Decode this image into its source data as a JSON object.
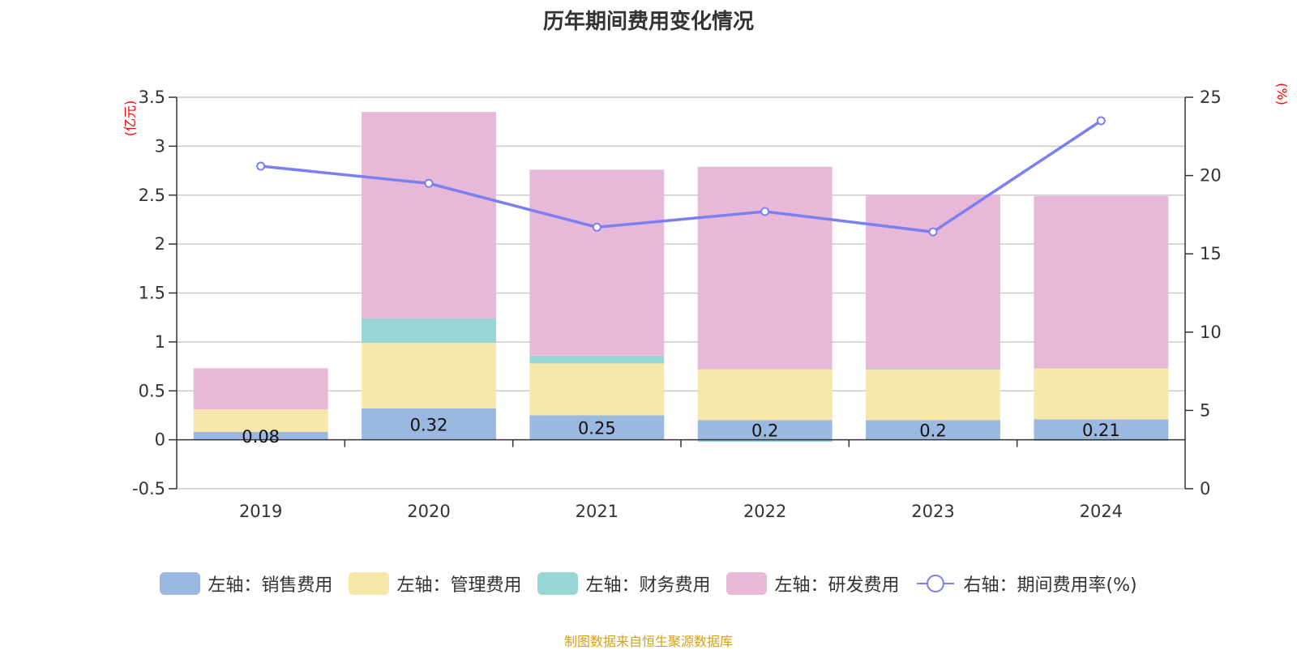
{
  "chart_data": {
    "type": "bar",
    "stacked": true,
    "title": "历年期间费用变化情况",
    "categories": [
      "2019",
      "2020",
      "2021",
      "2022",
      "2023",
      "2024"
    ],
    "left_axis_unit": "(亿元)",
    "right_axis_unit": "(%)",
    "ylim": [
      -0.5,
      3.5
    ],
    "yticks": [
      "3.5",
      "3",
      "2.5",
      "2",
      "1.5",
      "1",
      "0.5",
      "0",
      "-0.5"
    ],
    "y2lim": [
      0,
      25
    ],
    "y2ticks": [
      "25",
      "20",
      "15",
      "10",
      "5",
      "0"
    ],
    "grid": true,
    "legend_position": "bottom",
    "series": [
      {
        "name": "左轴：销售费用",
        "axis": "left",
        "kind": "bar",
        "color": "#9bb8e0",
        "values": [
          0.08,
          0.32,
          0.25,
          0.2,
          0.2,
          0.21
        ],
        "labels": [
          "0.08",
          "0.32",
          "0.25",
          "0.2",
          "0.2",
          "0.21"
        ]
      },
      {
        "name": "左轴：管理费用",
        "axis": "left",
        "kind": "bar",
        "color": "#f7e7a8",
        "values": [
          0.23,
          0.67,
          0.53,
          0.52,
          0.52,
          0.52
        ]
      },
      {
        "name": "左轴：财务费用",
        "axis": "left",
        "kind": "bar",
        "color": "#98d5d5",
        "values": [
          0.0,
          0.25,
          0.08,
          -0.02,
          0.01,
          -0.01
        ]
      },
      {
        "name": "左轴：研发费用",
        "axis": "left",
        "kind": "bar",
        "color": "#e7b8d8",
        "values": [
          0.42,
          2.11,
          1.9,
          2.07,
          1.77,
          1.76
        ]
      },
      {
        "name": "右轴：期间费用率(%)",
        "axis": "right",
        "kind": "line",
        "color": "#7b7ff0",
        "values": [
          20.6,
          19.5,
          16.7,
          17.7,
          16.4,
          23.5
        ]
      }
    ]
  },
  "source_note": "制图数据来自恒生聚源数据库"
}
